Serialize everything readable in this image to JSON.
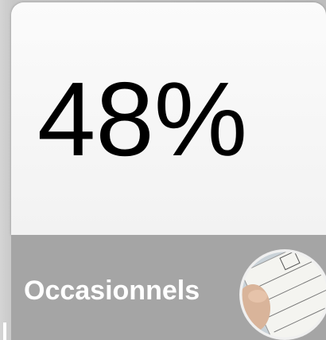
{
  "card": {
    "value": "48%",
    "label": "Occasionnels"
  }
}
